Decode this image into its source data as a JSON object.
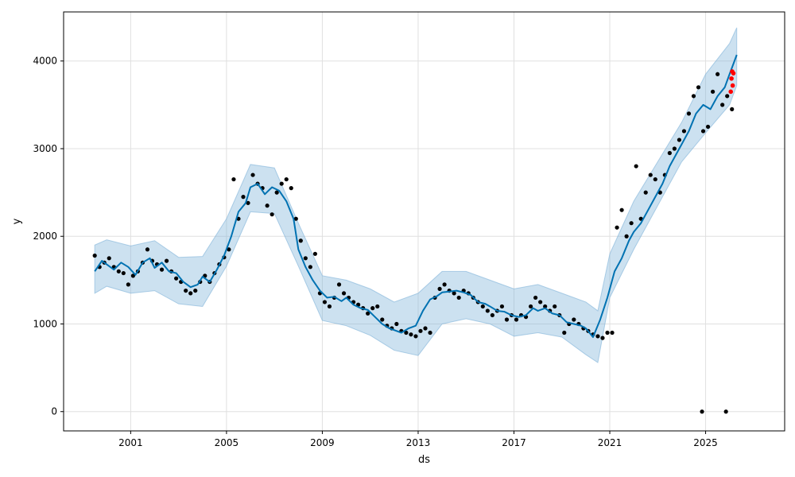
{
  "chart_data": {
    "type": "line",
    "title": "",
    "xlabel": "ds",
    "ylabel": "y",
    "xlim": [
      1998.2,
      2028.3
    ],
    "ylim": [
      -220,
      4560
    ],
    "x_ticks": [
      {
        "value": 2001,
        "label": "2001"
      },
      {
        "value": 2005,
        "label": "2005"
      },
      {
        "value": 2009,
        "label": "2009"
      },
      {
        "value": 2013,
        "label": "2013"
      },
      {
        "value": 2017,
        "label": "2017"
      },
      {
        "value": 2021,
        "label": "2021"
      },
      {
        "value": 2025,
        "label": "2025"
      }
    ],
    "y_ticks": [
      {
        "value": 0,
        "label": "0"
      },
      {
        "value": 1000,
        "label": "1000"
      },
      {
        "value": 2000,
        "label": "2000"
      },
      {
        "value": 3000,
        "label": "3000"
      },
      {
        "value": 4000,
        "label": "4000"
      }
    ],
    "grid": true,
    "colors": {
      "forecast": "#0072B2",
      "band": "#7FB3D9",
      "observed": "#000000",
      "highlight": "#FF0000"
    },
    "series": [
      {
        "kind": "forecast",
        "x": [
          1999.5,
          1999.8,
          2000.0,
          2000.3,
          2000.6,
          2000.9,
          2001.2,
          2001.5,
          2001.8,
          2002.0,
          2002.3,
          2002.6,
          2002.9,
          2003.2,
          2003.5,
          2003.8,
          2004.0,
          2004.3,
          2004.6,
          2004.9,
          2005.2,
          2005.5,
          2005.8,
          2006.0,
          2006.3,
          2006.6,
          2006.9,
          2007.2,
          2007.5,
          2007.8,
          2008.0,
          2008.3,
          2008.6,
          2008.9,
          2009.2,
          2009.5,
          2009.8,
          2010.0,
          2010.3,
          2010.6,
          2010.9,
          2011.2,
          2011.5,
          2011.8,
          2012.0,
          2012.3,
          2012.6,
          2012.9,
          2013.2,
          2013.5,
          2013.8,
          2014.0,
          2014.3,
          2014.6,
          2014.9,
          2015.2,
          2015.5,
          2015.8,
          2016.0,
          2016.3,
          2016.6,
          2016.9,
          2017.2,
          2017.5,
          2017.8,
          2018.0,
          2018.3,
          2018.6,
          2018.9,
          2019.2,
          2019.5,
          2019.8,
          2020.0,
          2020.3,
          2020.6,
          2020.9,
          2021.2,
          2021.5,
          2021.8,
          2022.0,
          2022.3,
          2022.6,
          2022.9,
          2023.2,
          2023.5,
          2023.8,
          2024.0,
          2024.3,
          2024.6,
          2024.9,
          2025.2,
          2025.5,
          2025.8,
          2026.0,
          2026.3
        ],
        "values": [
          1600,
          1720,
          1680,
          1620,
          1700,
          1650,
          1560,
          1700,
          1750,
          1640,
          1700,
          1600,
          1580,
          1480,
          1420,
          1450,
          1540,
          1480,
          1620,
          1780,
          2000,
          2280,
          2380,
          2560,
          2600,
          2480,
          2560,
          2520,
          2400,
          2200,
          1850,
          1650,
          1500,
          1380,
          1300,
          1310,
          1260,
          1300,
          1220,
          1180,
          1160,
          1080,
          1000,
          950,
          930,
          900,
          950,
          980,
          1150,
          1280,
          1320,
          1360,
          1370,
          1380,
          1360,
          1330,
          1250,
          1230,
          1200,
          1150,
          1140,
          1100,
          1080,
          1100,
          1180,
          1150,
          1180,
          1120,
          1100,
          1020,
          1000,
          980,
          950,
          850,
          1050,
          1300,
          1600,
          1750,
          1950,
          2050,
          2150,
          2300,
          2450,
          2600,
          2800,
          2950,
          3050,
          3200,
          3400,
          3500,
          3450,
          3600,
          3700,
          3850,
          4070
        ]
      },
      {
        "kind": "band",
        "x": [
          1999.5,
          2000.0,
          2001.0,
          2002.0,
          2003.0,
          2004.0,
          2005.0,
          2006.0,
          2007.0,
          2008.0,
          2009.0,
          2010.0,
          2011.0,
          2012.0,
          2013.0,
          2014.0,
          2015.0,
          2016.0,
          2017.0,
          2018.0,
          2019.0,
          2020.0,
          2020.5,
          2021.0,
          2022.0,
          2023.0,
          2024.0,
          2025.0,
          2026.0,
          2026.3
        ],
        "upper": [
          1900,
          1960,
          1890,
          1950,
          1760,
          1770,
          2200,
          2820,
          2780,
          2150,
          1550,
          1500,
          1400,
          1250,
          1350,
          1600,
          1600,
          1500,
          1400,
          1450,
          1350,
          1250,
          1150,
          1800,
          2400,
          2850,
          3300,
          3850,
          4200,
          4380
        ],
        "lower": [
          1350,
          1430,
          1350,
          1380,
          1230,
          1200,
          1660,
          2280,
          2260,
          1660,
          1040,
          980,
          870,
          700,
          640,
          1000,
          1060,
          1000,
          860,
          900,
          850,
          650,
          560,
          1300,
          1850,
          2350,
          2850,
          3180,
          3500,
          3720
        ]
      },
      {
        "kind": "observed",
        "x": [
          1999.5,
          1999.7,
          1999.9,
          2000.1,
          2000.3,
          2000.5,
          2000.7,
          2000.9,
          2001.1,
          2001.3,
          2001.5,
          2001.7,
          2001.9,
          2002.1,
          2002.3,
          2002.5,
          2002.7,
          2002.9,
          2003.1,
          2003.3,
          2003.5,
          2003.7,
          2003.9,
          2004.1,
          2004.3,
          2004.5,
          2004.7,
          2004.9,
          2005.1,
          2005.3,
          2005.5,
          2005.7,
          2005.9,
          2006.1,
          2006.3,
          2006.5,
          2006.7,
          2006.9,
          2007.1,
          2007.3,
          2007.5,
          2007.7,
          2007.9,
          2008.1,
          2008.3,
          2008.5,
          2008.7,
          2008.9,
          2009.1,
          2009.3,
          2009.5,
          2009.7,
          2009.9,
          2010.1,
          2010.3,
          2010.5,
          2010.7,
          2010.9,
          2011.1,
          2011.3,
          2011.5,
          2011.7,
          2011.9,
          2012.1,
          2012.3,
          2012.5,
          2012.7,
          2012.9,
          2013.1,
          2013.3,
          2013.5,
          2013.7,
          2013.9,
          2014.1,
          2014.3,
          2014.5,
          2014.7,
          2014.9,
          2015.1,
          2015.3,
          2015.5,
          2015.7,
          2015.9,
          2016.1,
          2016.3,
          2016.5,
          2016.7,
          2016.9,
          2017.1,
          2017.3,
          2017.5,
          2017.7,
          2017.9,
          2018.1,
          2018.3,
          2018.5,
          2018.7,
          2018.9,
          2019.1,
          2019.3,
          2019.5,
          2019.7,
          2019.9,
          2020.1,
          2020.3,
          2020.5,
          2020.7,
          2020.9,
          2021.1,
          2021.3,
          2021.5,
          2021.7,
          2021.9,
          2022.1,
          2022.3,
          2022.5,
          2022.7,
          2022.9,
          2023.1,
          2023.3,
          2023.5,
          2023.7,
          2023.9,
          2024.1,
          2024.3,
          2024.5,
          2024.7,
          2024.9,
          2025.1,
          2025.3,
          2025.5,
          2025.7,
          2025.9,
          2026.1
        ],
        "values": [
          1780,
          1650,
          1700,
          1750,
          1650,
          1600,
          1580,
          1450,
          1550,
          1600,
          1700,
          1850,
          1720,
          1680,
          1620,
          1720,
          1600,
          1520,
          1480,
          1380,
          1350,
          1380,
          1480,
          1550,
          1480,
          1580,
          1680,
          1760,
          1850,
          2650,
          2200,
          2450,
          2380,
          2700,
          2600,
          2550,
          2350,
          2250,
          2500,
          2600,
          2650,
          2550,
          2200,
          1950,
          1750,
          1650,
          1800,
          1350,
          1250,
          1200,
          1300,
          1450,
          1350,
          1300,
          1250,
          1220,
          1180,
          1120,
          1180,
          1200,
          1050,
          980,
          950,
          1000,
          920,
          900,
          880,
          860,
          920,
          950,
          900,
          1300,
          1400,
          1450,
          1380,
          1350,
          1300,
          1380,
          1350,
          1300,
          1250,
          1200,
          1150,
          1100,
          1150,
          1200,
          1050,
          1100,
          1050,
          1100,
          1080,
          1200,
          1300,
          1250,
          1200,
          1150,
          1200,
          1100,
          900,
          1000,
          1050,
          1000,
          950,
          920,
          880,
          860,
          840,
          900,
          900,
          2100,
          2300,
          2000,
          2150,
          2800,
          2200,
          2500,
          2700,
          2650,
          2500,
          2700,
          2950,
          3000,
          3100,
          3200,
          3400,
          3600,
          3700,
          3200,
          3250,
          3650,
          3850,
          3500,
          3600,
          3450
        ]
      },
      {
        "kind": "highlight",
        "x": [
          2026.05,
          2026.08,
          2026.11,
          2026.13,
          2026.16
        ],
        "values": [
          3650,
          3800,
          3880,
          3720,
          3860
        ]
      }
    ],
    "annotations": [
      {
        "kind": "outlier",
        "x": 2024.85,
        "y": 0
      },
      {
        "kind": "outlier",
        "x": 2025.85,
        "y": 0
      }
    ]
  }
}
